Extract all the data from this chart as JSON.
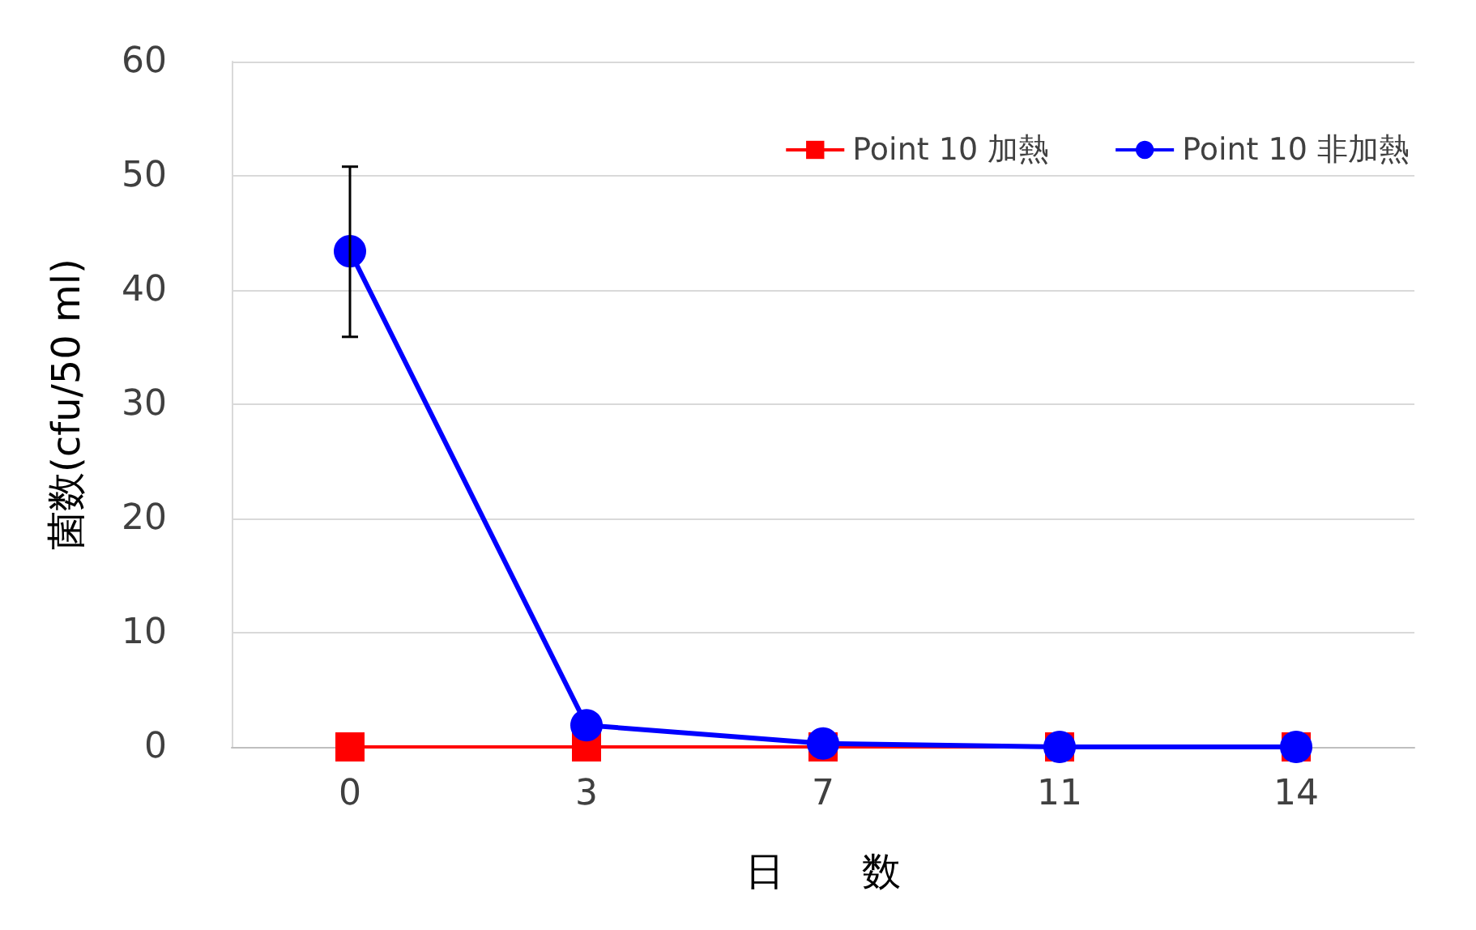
{
  "chart_data": {
    "type": "line",
    "xlabel": "日　　数",
    "ylabel": "菌数(cfu/50 ml)",
    "categories": [
      "0",
      "3",
      "7",
      "11",
      "14"
    ],
    "series": [
      {
        "name": "Point 10 加熱",
        "color": "#ff0000",
        "marker": "square",
        "values": [
          0,
          0,
          0,
          0,
          0
        ]
      },
      {
        "name": "Point 10 非加熱",
        "color": "#0000ff",
        "marker": "circle",
        "values": [
          43.4,
          1.9,
          0.3,
          0,
          0
        ],
        "errors": [
          [
            35.9,
            50.8
          ],
          null,
          null,
          null,
          null
        ]
      }
    ],
    "ylim": [
      0,
      60
    ],
    "yticks": [
      0,
      10,
      20,
      30,
      40,
      50,
      60
    ],
    "grid": "y",
    "legend": "top right"
  }
}
